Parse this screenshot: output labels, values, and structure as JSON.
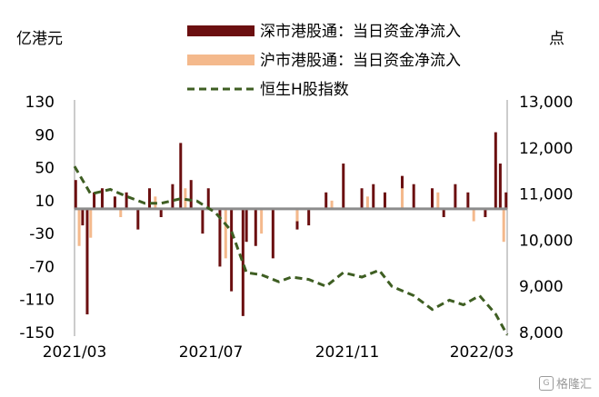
{
  "chart_data": {
    "type": "bar",
    "left_axis_unit": "亿港元",
    "right_axis_unit": "点",
    "y_left": {
      "min": -150,
      "max": 130,
      "ticks": [
        130,
        90,
        50,
        10,
        -30,
        -70,
        -110,
        -150
      ]
    },
    "y_right": {
      "min": 8000,
      "max": 13000,
      "ticks": [
        13000,
        12000,
        11000,
        10000,
        9000,
        8000
      ],
      "tick_labels": [
        "13,000",
        "12,000",
        "11,000",
        "10,000",
        "9,000",
        "8,000"
      ]
    },
    "x_ticks": [
      "2021/03",
      "2021/07",
      "2021/11",
      "2022/03"
    ],
    "x_range": [
      "2021-03-01",
      "2022-03-11"
    ],
    "legend": {
      "placement": "top",
      "entries": [
        {
          "name": "深市港股通：当日资金净流入",
          "style": "bar",
          "color": "#6b0f10"
        },
        {
          "name": "沪市港股通：当日资金净流入",
          "style": "bar",
          "color": "#f4b98c"
        },
        {
          "name": "恒生H股指数",
          "style": "dashed-line",
          "color": "#3e5e22"
        }
      ]
    },
    "series": [
      {
        "name": "深市港股通：当日资金净流入",
        "axis": "left",
        "color": "#6b0f10",
        "values_monthly_sample": [
          [
            "2021-03-02",
            35
          ],
          [
            "2021-03-08",
            -20
          ],
          [
            "2021-03-12",
            -128
          ],
          [
            "2021-03-18",
            20
          ],
          [
            "2021-03-25",
            25
          ],
          [
            "2021-04-05",
            15
          ],
          [
            "2021-04-15",
            20
          ],
          [
            "2021-04-25",
            -25
          ],
          [
            "2021-05-05",
            25
          ],
          [
            "2021-05-15",
            -10
          ],
          [
            "2021-05-25",
            30
          ],
          [
            "2021-06-01",
            80
          ],
          [
            "2021-06-10",
            35
          ],
          [
            "2021-06-20",
            -30
          ],
          [
            "2021-06-25",
            25
          ],
          [
            "2021-07-05",
            -70
          ],
          [
            "2021-07-15",
            -100
          ],
          [
            "2021-07-25",
            -130
          ],
          [
            "2021-07-28",
            -40
          ],
          [
            "2021-08-05",
            -45
          ],
          [
            "2021-08-20",
            -60
          ],
          [
            "2021-09-10",
            -25
          ],
          [
            "2021-09-20",
            -20
          ],
          [
            "2021-10-05",
            20
          ],
          [
            "2021-10-20",
            55
          ],
          [
            "2021-11-05",
            25
          ],
          [
            "2021-11-15",
            30
          ],
          [
            "2021-11-25",
            20
          ],
          [
            "2021-12-10",
            40
          ],
          [
            "2021-12-20",
            30
          ],
          [
            "2022-01-05",
            25
          ],
          [
            "2022-01-15",
            -10
          ],
          [
            "2022-01-25",
            30
          ],
          [
            "2022-02-05",
            20
          ],
          [
            "2022-02-20",
            -10
          ],
          [
            "2022-03-01",
            93
          ],
          [
            "2022-03-05",
            55
          ],
          [
            "2022-03-10",
            20
          ]
        ]
      },
      {
        "name": "沪市港股通：当日资金净流入",
        "axis": "left",
        "color": "#f4b98c",
        "values_monthly_sample": [
          [
            "2021-03-05",
            -45
          ],
          [
            "2021-03-15",
            -35
          ],
          [
            "2021-04-10",
            -10
          ],
          [
            "2021-05-10",
            15
          ],
          [
            "2021-06-05",
            25
          ],
          [
            "2021-07-10",
            -60
          ],
          [
            "2021-08-10",
            -30
          ],
          [
            "2021-09-10",
            -15
          ],
          [
            "2021-10-10",
            10
          ],
          [
            "2021-11-10",
            15
          ],
          [
            "2021-12-10",
            25
          ],
          [
            "2022-01-10",
            20
          ],
          [
            "2022-02-10",
            -15
          ],
          [
            "2022-03-08",
            -40
          ]
        ]
      },
      {
        "name": "恒生H股指数",
        "axis": "right",
        "color": "#3e5e22",
        "values_monthly_sample": [
          [
            "2021-03-01",
            11600
          ],
          [
            "2021-03-15",
            11000
          ],
          [
            "2021-04-01",
            11100
          ],
          [
            "2021-04-15",
            10950
          ],
          [
            "2021-05-01",
            10800
          ],
          [
            "2021-05-15",
            10800
          ],
          [
            "2021-06-01",
            10900
          ],
          [
            "2021-06-15",
            10850
          ],
          [
            "2021-07-01",
            10600
          ],
          [
            "2021-07-15",
            10200
          ],
          [
            "2021-07-28",
            9300
          ],
          [
            "2021-08-10",
            9250
          ],
          [
            "2021-08-25",
            9100
          ],
          [
            "2021-09-05",
            9200
          ],
          [
            "2021-09-20",
            9150
          ],
          [
            "2021-10-05",
            9000
          ],
          [
            "2021-10-20",
            9300
          ],
          [
            "2021-11-05",
            9200
          ],
          [
            "2021-11-20",
            9350
          ],
          [
            "2021-12-01",
            9000
          ],
          [
            "2021-12-20",
            8800
          ],
          [
            "2022-01-05",
            8500
          ],
          [
            "2022-01-20",
            8700
          ],
          [
            "2022-02-01",
            8600
          ],
          [
            "2022-02-15",
            8800
          ],
          [
            "2022-03-01",
            8400
          ],
          [
            "2022-03-11",
            7950
          ]
        ]
      }
    ]
  },
  "watermark": {
    "text": "格隆汇",
    "logo": "G"
  }
}
